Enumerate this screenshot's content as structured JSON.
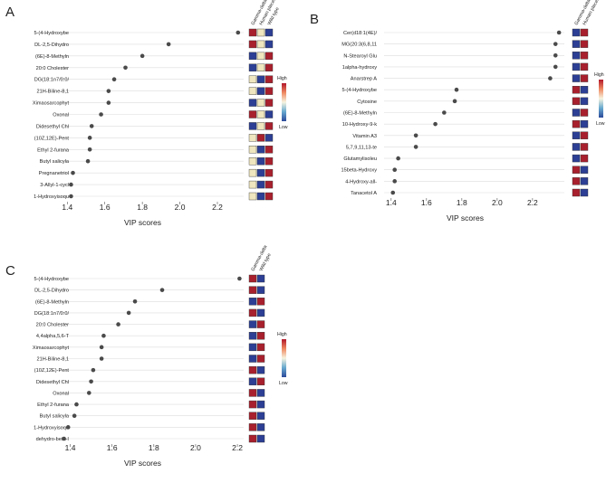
{
  "chart_data": [
    {
      "panel": "A",
      "type": "scatter",
      "xlabel": "VIP scores",
      "xticks": [
        1.4,
        1.6,
        1.8,
        2.0,
        2.2
      ],
      "xlim": [
        1.36,
        2.34
      ],
      "groups": [
        "Gamma-delta",
        "Human placenta",
        "Wild type"
      ],
      "legend": {
        "high": "High",
        "low": "Low"
      },
      "categories": [
        "5-(4-Hydroxybe",
        "DL-2,5-Dihydro",
        "(6E)-8-Methyln",
        "20:0 Cholester",
        "DG(18:1n7/0:0/",
        "21H-Biline-8,1",
        "Ximaosarcophyt",
        "Oxonal",
        "Didesethyl Chl",
        "(10Z,12E)-Pent",
        "Ethyl 2-furana",
        "Butyl salicyla",
        "Pregnanetriol",
        "3-Allyl-1-cycl",
        "1-Hydroxyisoqu"
      ],
      "values": [
        2.31,
        1.94,
        1.8,
        1.71,
        1.65,
        1.62,
        1.62,
        1.58,
        1.53,
        1.52,
        1.52,
        1.51,
        1.43,
        1.42,
        1.42
      ],
      "heat": [
        [
          "red",
          "beige",
          "blue"
        ],
        [
          "red",
          "beige",
          "blue"
        ],
        [
          "blue",
          "beige",
          "red"
        ],
        [
          "blue",
          "beige",
          "red"
        ],
        [
          "beige",
          "blue",
          "red"
        ],
        [
          "beige",
          "blue",
          "red"
        ],
        [
          "blue",
          "beige",
          "red"
        ],
        [
          "red",
          "beige",
          "blue"
        ],
        [
          "blue",
          "beige",
          "red"
        ],
        [
          "beige",
          "red",
          "blue"
        ],
        [
          "beige",
          "blue",
          "red"
        ],
        [
          "beige",
          "blue",
          "red"
        ],
        [
          "beige",
          "blue",
          "red"
        ],
        [
          "beige",
          "blue",
          "red"
        ],
        [
          "beige",
          "blue",
          "red"
        ]
      ]
    },
    {
      "panel": "B",
      "type": "scatter",
      "xlabel": "VIP scores",
      "xticks": [
        1.4,
        1.6,
        1.8,
        2.0,
        2.2
      ],
      "xlim": [
        1.36,
        2.38
      ],
      "groups": [
        "Gamma-delta",
        "Human placenta"
      ],
      "legend": {
        "high": "High",
        "low": "Low"
      },
      "categories": [
        "Cer(d18:1(4E)/",
        "MG(20:3(6,8,11",
        "N-Stearoyl Glu",
        "1alpha-hydroxy",
        "Anarstrep A",
        "5-(4-Hydroxybe",
        "Cytosine",
        "(6E)-8-Methyln",
        "10-Hydroxy-9-k",
        "Vitamin A3",
        "5,7,9,11,13-te",
        "Glutamylisoleu",
        "15beta-Hydroxy",
        "4-Hydroxy-all-",
        "Tanacetol A"
      ],
      "values": [
        2.35,
        2.33,
        2.33,
        2.33,
        2.3,
        1.77,
        1.76,
        1.7,
        1.65,
        1.54,
        1.54,
        1.44,
        1.42,
        1.42,
        1.41
      ],
      "heat": [
        [
          "blue",
          "red"
        ],
        [
          "blue",
          "red"
        ],
        [
          "blue",
          "red"
        ],
        [
          "blue",
          "red"
        ],
        [
          "blue",
          "red"
        ],
        [
          "red",
          "blue"
        ],
        [
          "red",
          "blue"
        ],
        [
          "blue",
          "red"
        ],
        [
          "red",
          "blue"
        ],
        [
          "blue",
          "red"
        ],
        [
          "blue",
          "red"
        ],
        [
          "blue",
          "red"
        ],
        [
          "red",
          "blue"
        ],
        [
          "red",
          "blue"
        ],
        [
          "red",
          "blue"
        ]
      ]
    },
    {
      "panel": "C",
      "type": "scatter",
      "xlabel": "VIP scores",
      "xticks": [
        1.4,
        1.6,
        1.8,
        2.0,
        2.2
      ],
      "xlim": [
        1.35,
        2.23
      ],
      "groups": [
        "Gamma-delta",
        "Wild type"
      ],
      "legend": {
        "high": "High",
        "low": "Low"
      },
      "categories": [
        "5-(4-Hydroxybe",
        "DL-2,5-Dihydro",
        "(6E)-8-Methyln",
        "DG(18:1n7/0:0/",
        "20:0 Cholester",
        "4,4alpha,5,6-T",
        "Ximaosarcophyt",
        "21H-Biline-8,1",
        "(10Z,12E)-Pent",
        "Didesethyl Chl",
        "Oxonal",
        "Ethyl 2-furana",
        "Butyl salicyla",
        "1-Hydroxyisoqu",
        "dehydro-beta-I"
      ],
      "values": [
        2.21,
        1.84,
        1.71,
        1.68,
        1.63,
        1.56,
        1.55,
        1.55,
        1.51,
        1.5,
        1.49,
        1.43,
        1.42,
        1.39,
        1.37
      ],
      "heat": [
        [
          "red",
          "blue"
        ],
        [
          "red",
          "blue"
        ],
        [
          "blue",
          "red"
        ],
        [
          "red",
          "blue"
        ],
        [
          "blue",
          "red"
        ],
        [
          "blue",
          "red"
        ],
        [
          "blue",
          "red"
        ],
        [
          "blue",
          "red"
        ],
        [
          "red",
          "blue"
        ],
        [
          "blue",
          "red"
        ],
        [
          "red",
          "blue"
        ],
        [
          "red",
          "blue"
        ],
        [
          "red",
          "blue"
        ],
        [
          "red",
          "blue"
        ],
        [
          "red",
          "blue"
        ]
      ]
    }
  ]
}
